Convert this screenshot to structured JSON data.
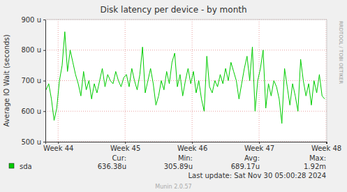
{
  "chart_data": {
    "type": "line",
    "title": "Disk latency per device - by month",
    "y_label": "Average IO Wait (seconds)",
    "x": [
      43.82,
      43.86,
      43.9,
      43.94,
      43.98,
      44.02,
      44.06,
      44.1,
      44.14,
      44.18,
      44.22,
      44.26,
      44.3,
      44.34,
      44.38,
      44.42,
      44.46,
      44.5,
      44.54,
      44.58,
      44.62,
      44.66,
      44.7,
      44.74,
      44.78,
      44.82,
      44.86,
      44.9,
      44.94,
      44.98,
      45.02,
      45.06,
      45.1,
      45.14,
      45.18,
      45.22,
      45.26,
      45.3,
      45.34,
      45.38,
      45.42,
      45.46,
      45.5,
      45.54,
      45.58,
      45.62,
      45.66,
      45.7,
      45.74,
      45.78,
      45.82,
      45.86,
      45.9,
      45.94,
      45.98,
      46.02,
      46.06,
      46.1,
      46.14,
      46.18,
      46.22,
      46.26,
      46.3,
      46.34,
      46.38,
      46.42,
      46.46,
      46.5,
      46.54,
      46.58,
      46.62,
      46.66,
      46.7,
      46.74,
      46.78,
      46.82,
      46.86,
      46.9,
      46.94,
      46.98,
      47.02,
      47.06,
      47.1,
      47.14,
      47.18,
      47.22,
      47.26,
      47.3,
      47.34,
      47.38,
      47.42,
      47.46,
      47.5,
      47.54,
      47.58,
      47.62,
      47.66,
      47.7,
      47.74,
      47.78,
      47.82,
      47.86,
      47.9,
      47.94,
      47.98
    ],
    "series": [
      {
        "name": "sda",
        "color": "#00cc00",
        "values": [
          670,
          690,
          640,
          570,
          610,
          700,
          750,
          860,
          730,
          800,
          760,
          720,
          690,
          650,
          730,
          670,
          700,
          640,
          690,
          660,
          700,
          740,
          680,
          720,
          700,
          690,
          730,
          700,
          680,
          710,
          720,
          680,
          740,
          700,
          670,
          720,
          810,
          660,
          700,
          740,
          690,
          620,
          650,
          700,
          670,
          730,
          690,
          760,
          790,
          680,
          720,
          650,
          700,
          740,
          690,
          730,
          660,
          700,
          640,
          600,
          780,
          680,
          660,
          700,
          680,
          720,
          690,
          740,
          700,
          760,
          730,
          700,
          640,
          690,
          740,
          780,
          700,
          810,
          600,
          700,
          740,
          800,
          610,
          690,
          650,
          700,
          680,
          640,
          560,
          740,
          680,
          620,
          690,
          650,
          600,
          770,
          700,
          650,
          690,
          620,
          700,
          660,
          720,
          650,
          640
        ]
      }
    ],
    "xlim": [
      43.81,
      48.01
    ],
    "xticks": [
      {
        "value": 44,
        "label": "Week 44"
      },
      {
        "value": 45,
        "label": "Week 45"
      },
      {
        "value": 46,
        "label": "Week 46"
      },
      {
        "value": 47,
        "label": "Week 47"
      },
      {
        "value": 48,
        "label": "Week 48"
      }
    ],
    "ylim": [
      500,
      900
    ],
    "yticks": [
      {
        "value": 500,
        "label": "500 u"
      },
      {
        "value": 600,
        "label": "600 u"
      },
      {
        "value": 700,
        "label": "700 u"
      },
      {
        "value": 800,
        "label": "800 u"
      },
      {
        "value": 900,
        "label": "900 u"
      }
    ],
    "grid": true,
    "stats": {
      "headers": [
        "Cur:",
        "Min:",
        "Avg:",
        "Max:"
      ],
      "values": [
        "636.38u",
        "305.89u",
        "689.17u",
        "1.92m"
      ]
    },
    "last_update": "Last update: Sat Nov 30 05:00:28 2024",
    "footer": "Munin 2.0.57",
    "watermark": "RRDTOOL / TOBI OETIKER"
  }
}
